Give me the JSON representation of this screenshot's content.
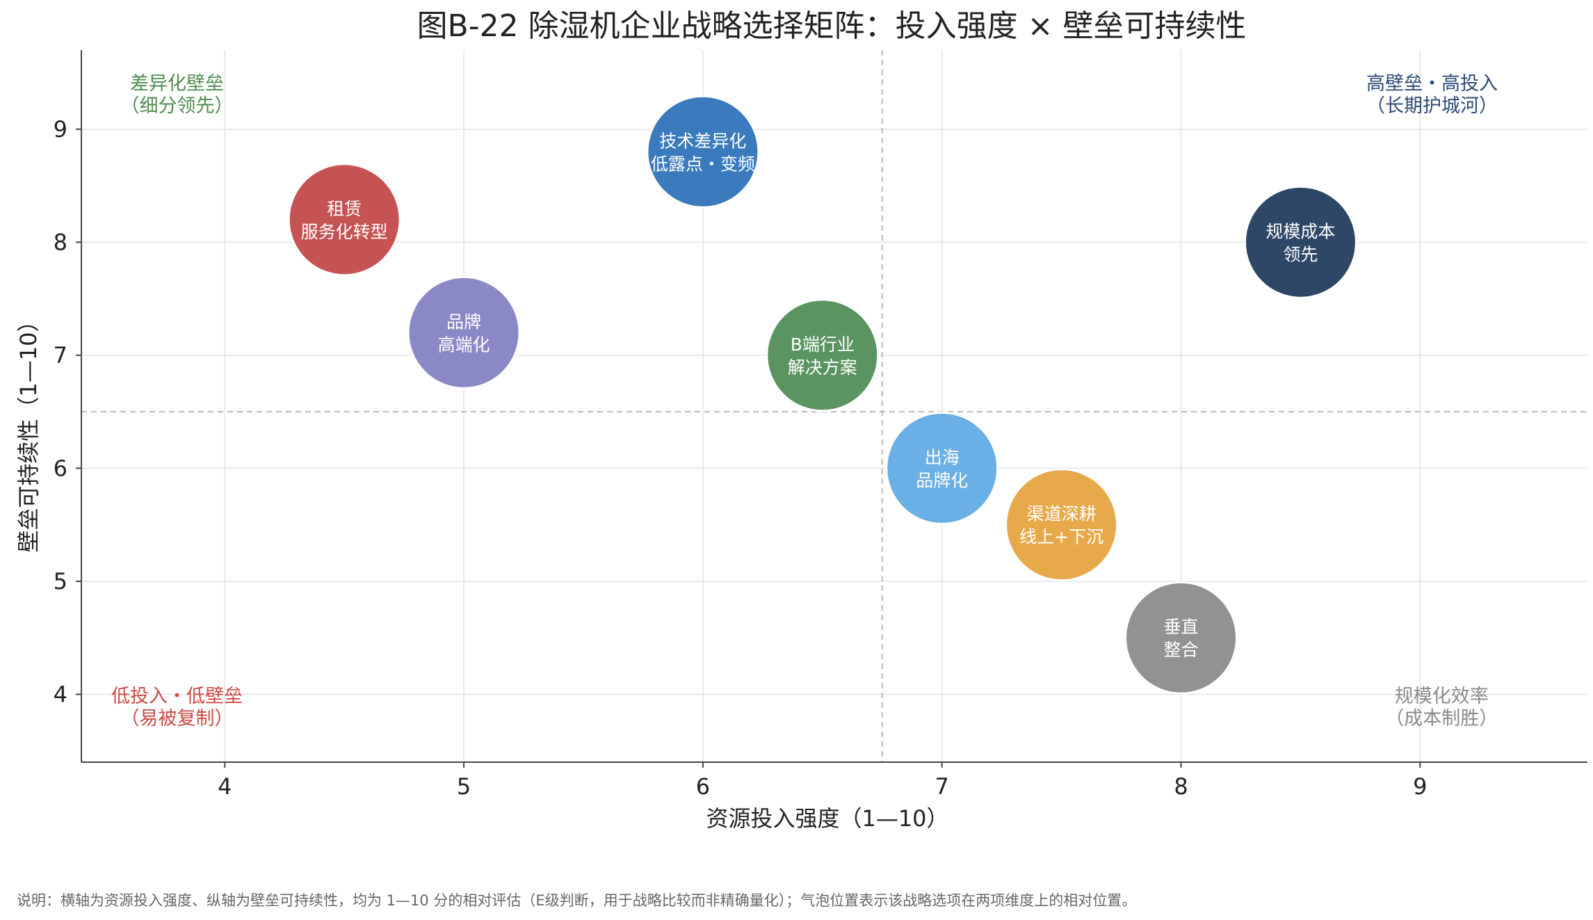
{
  "chart_data": {
    "type": "scatter",
    "title": "图B-22  除湿机企业战略选择矩阵：投入强度 × 壁垒可持续性",
    "xlabel": "资源投入强度（1—10）",
    "ylabel": "壁垒可持续性（1—10）",
    "xlim": [
      3.4,
      9.7
    ],
    "ylim": [
      3.4,
      9.7
    ],
    "xticks": [
      4,
      5,
      6,
      7,
      8,
      9
    ],
    "yticks": [
      4,
      5,
      6,
      7,
      8,
      9
    ],
    "grid": true,
    "divider_x": 6.75,
    "divider_y": 6.5,
    "points": [
      {
        "x": 4.5,
        "y": 8.2,
        "lines": [
          "租赁",
          "服务化转型"
        ],
        "color": "#c65353"
      },
      {
        "x": 5.0,
        "y": 7.2,
        "lines": [
          "品牌",
          "高端化"
        ],
        "color": "#8a88c6"
      },
      {
        "x": 6.0,
        "y": 8.8,
        "lines": [
          "技术差异化",
          "低露点・变频"
        ],
        "color": "#3a7abd"
      },
      {
        "x": 6.5,
        "y": 7.0,
        "lines": [
          "B端行业",
          "解决方案"
        ],
        "color": "#5a9461"
      },
      {
        "x": 7.0,
        "y": 6.0,
        "lines": [
          "出海",
          "品牌化"
        ],
        "color": "#6aafe5"
      },
      {
        "x": 7.5,
        "y": 5.5,
        "lines": [
          "渠道深耕",
          "线上+下沉"
        ],
        "color": "#e8a94b"
      },
      {
        "x": 8.0,
        "y": 4.5,
        "lines": [
          "垂直",
          "整合"
        ],
        "color": "#929292"
      },
      {
        "x": 8.5,
        "y": 8.0,
        "lines": [
          "规模成本",
          "领先"
        ],
        "color": "#2f4766"
      }
    ],
    "quadrant_labels": [
      {
        "lines": [
          "差异化壁垒",
          "（细分领先）"
        ],
        "color": "#4e8c4f",
        "corner": "top-left"
      },
      {
        "lines": [
          "高壁垒・高投入",
          "（长期护城河）"
        ],
        "color": "#2b4a75",
        "corner": "top-right"
      },
      {
        "lines": [
          "低投入・低壁垒",
          "（易被复制）"
        ],
        "color": "#cc4a42",
        "corner": "bottom-left"
      },
      {
        "lines": [
          "规模化效率",
          "（成本制胜）"
        ],
        "color": "#8a8a8a",
        "corner": "bottom-right"
      }
    ],
    "note": "说明：横轴为资源投入强度、纵轴为壁垒可持续性，均为 1—10 分的相对评估（E级判断，用于战略比较而非精确量化）；气泡位置表示该战略选项在两项维度上的相对位置。"
  }
}
